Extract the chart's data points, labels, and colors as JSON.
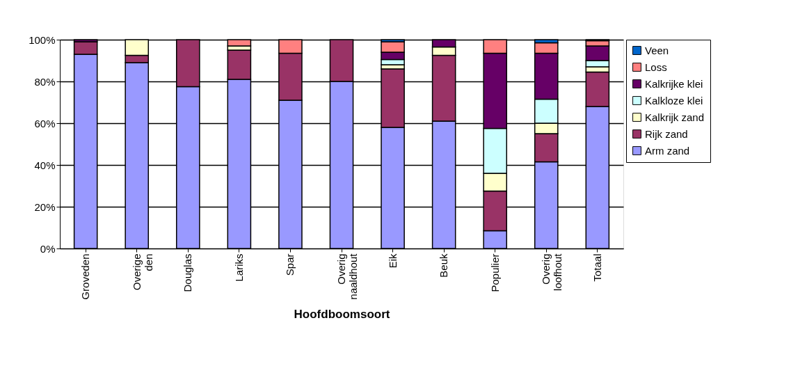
{
  "chart_data": {
    "type": "bar",
    "stacked": true,
    "xlabel": "Hoofdboomsoort",
    "categories": [
      "Groveden",
      "Overige den",
      "Douglas",
      "Lariks",
      "Spar",
      "Overig naaldhout",
      "Eik",
      "Beuk",
      "Populier",
      "Overig loofhout",
      "Totaal"
    ],
    "series": [
      {
        "name": "Arm zand",
        "color": "#9999ff",
        "values": [
          93,
          89,
          77.5,
          81,
          71,
          80,
          58,
          61,
          8.5,
          41.5,
          68
        ]
      },
      {
        "name": "Rijk zand",
        "color": "#993366",
        "values": [
          6,
          3.5,
          22.5,
          14,
          22.5,
          20,
          28,
          31.5,
          19,
          13.5,
          16.5
        ]
      },
      {
        "name": "Kalkrijk zand",
        "color": "#ffffcc",
        "values": [
          null,
          7.5,
          null,
          2,
          null,
          null,
          2,
          4,
          8.5,
          5,
          2.5
        ]
      },
      {
        "name": "Kalkloze klei",
        "color": "#ccffff",
        "values": [
          null,
          null,
          null,
          null,
          null,
          null,
          2.5,
          null,
          21.5,
          11.5,
          3
        ]
      },
      {
        "name": "Kalkrijke klei",
        "color": "#660066",
        "values": [
          1,
          null,
          null,
          null,
          null,
          null,
          3.5,
          3.5,
          36,
          22,
          7
        ]
      },
      {
        "name": "Loss",
        "color": "#ff8080",
        "values": [
          null,
          null,
          null,
          3,
          6.5,
          null,
          5,
          null,
          6.5,
          5,
          2.5
        ]
      },
      {
        "name": "Veen",
        "color": "#0066cc",
        "values": [
          null,
          null,
          null,
          null,
          null,
          null,
          1,
          null,
          null,
          1.5,
          0.5
        ]
      }
    ],
    "ylim": [
      0,
      100
    ],
    "yticks": [
      {
        "value": 0,
        "label": "0%"
      },
      {
        "value": 20,
        "label": "20%"
      },
      {
        "value": 40,
        "label": "40%"
      },
      {
        "value": 60,
        "label": "60%"
      },
      {
        "value": 80,
        "label": "80%"
      },
      {
        "value": 100,
        "label": "100%"
      }
    ],
    "grid": "y",
    "legend": "right"
  }
}
